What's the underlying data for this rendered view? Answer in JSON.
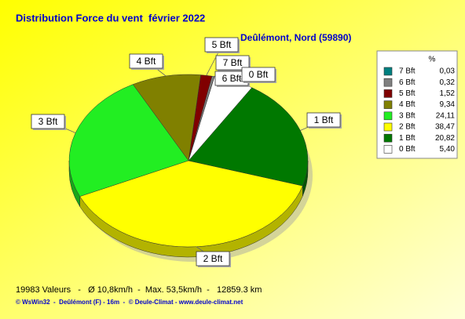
{
  "chart_data": {
    "type": "pie",
    "title": "Distribution Force du vent  février 2022",
    "subtitle": "Deûlémont, Nord (59890)",
    "categories": [
      "7 Bft",
      "6 Bft",
      "5 Bft",
      "4 Bft",
      "3 Bft",
      "2 Bft",
      "1 Bft",
      "0 Bft"
    ],
    "values": [
      0.03,
      0.32,
      1.52,
      9.34,
      24.11,
      38.47,
      20.82,
      5.4
    ],
    "value_labels": [
      "0,03",
      "0,32",
      "1,52",
      "9,34",
      "24,11",
      "38,47",
      "20,82",
      "5,40"
    ],
    "colors": [
      "#008080",
      "#808080",
      "#800000",
      "#808000",
      "#22ee22",
      "#ffff00",
      "#007800",
      "#ffffff"
    ],
    "legend_header": "%",
    "legend": "right"
  },
  "footer": {
    "stats": "19983 Valeurs   -   Ø 10,8km/h  -  Max. 53,5km/h  -   12859.3 km",
    "credits": "© WsWin32  -  Deûlémont (F) - 16m  -  © Deule-Climat - www.deule-climat.net"
  }
}
